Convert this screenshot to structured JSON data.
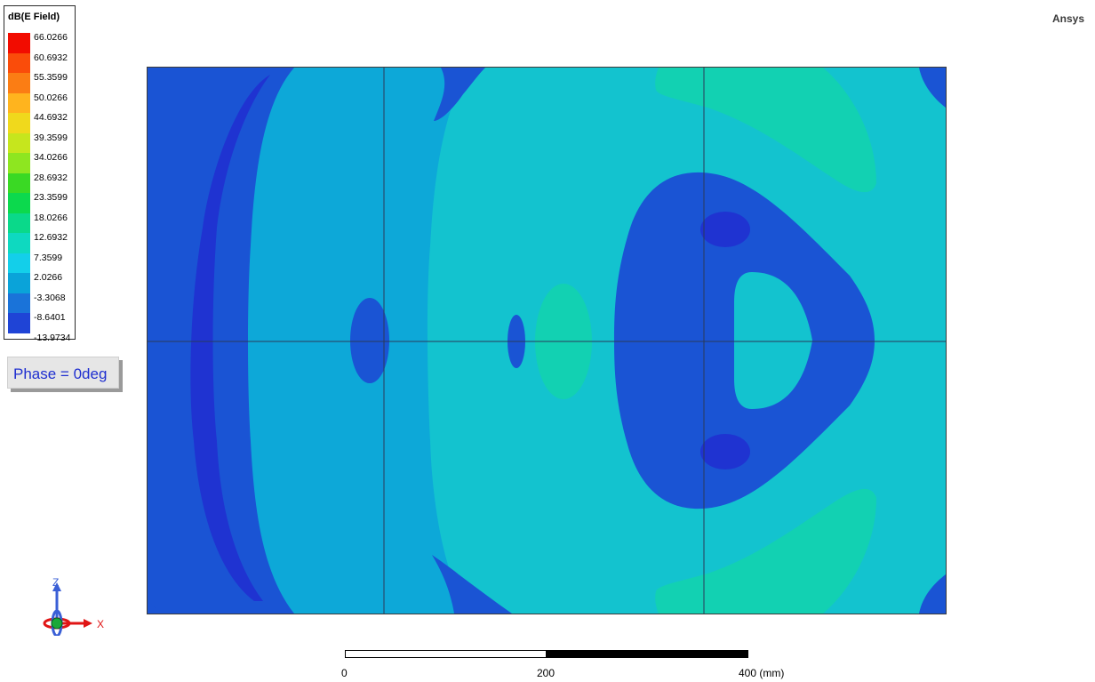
{
  "brand": "Ansys",
  "legend": {
    "title": "dB(E Field)",
    "entries": [
      {
        "label": "66.0266",
        "color": "#f20c00"
      },
      {
        "label": "60.6932",
        "color": "#fa4c0a"
      },
      {
        "label": "55.3599",
        "color": "#fb7d14"
      },
      {
        "label": "50.0266",
        "color": "#ffb41e"
      },
      {
        "label": "44.6932",
        "color": "#f0d91c"
      },
      {
        "label": "39.3599",
        "color": "#c6e61d"
      },
      {
        "label": "34.0266",
        "color": "#8ee620"
      },
      {
        "label": "28.6932",
        "color": "#3ad924"
      },
      {
        "label": "23.3599",
        "color": "#0cd94d"
      },
      {
        "label": "18.0266",
        "color": "#0ad98a"
      },
      {
        "label": "12.6932",
        "color": "#0ed9c0"
      },
      {
        "label": "7.3599",
        "color": "#13cfea"
      },
      {
        "label": "2.0266",
        "color": "#0aa3d9"
      },
      {
        "label": "-3.3068",
        "color": "#1a73d9"
      },
      {
        "label": "-8.6401",
        "color": "#1f44d6"
      },
      {
        "label": "-13.9734",
        "color": "#1410e6"
      }
    ]
  },
  "phase": "Phase = 0deg",
  "scale_bar": {
    "labels": [
      "0",
      "200",
      "400 (mm)"
    ]
  },
  "axes": {
    "z": "Z",
    "x": "X"
  },
  "field_colors": {
    "deep": "#1f33d1",
    "dark": "#1a54d4",
    "mid": "#0da8d8",
    "light": "#13c3cf",
    "bright": "#12d1b2",
    "grid": "#2a3a5a"
  }
}
